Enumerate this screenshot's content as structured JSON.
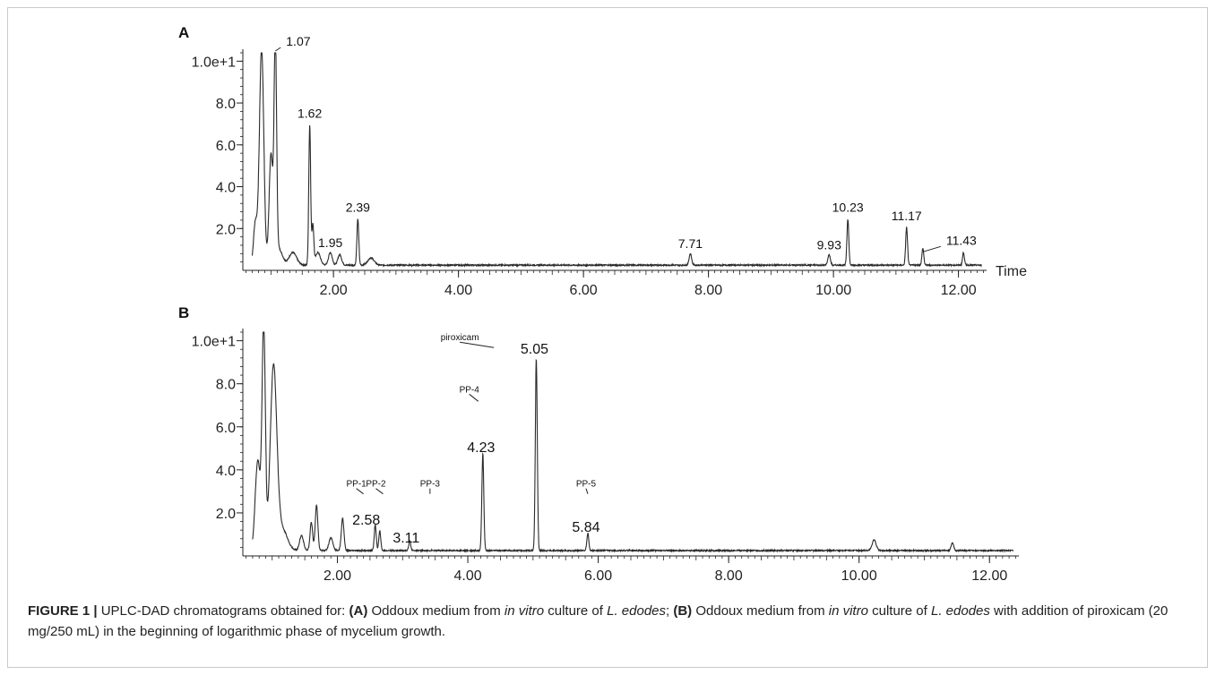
{
  "caption": {
    "label": "FIGURE 1 |",
    "parts": [
      {
        "t": " UPLC-DAD chromatograms obtained for: ",
        "s": "n"
      },
      {
        "t": "(A)",
        "s": "b"
      },
      {
        "t": " Oddoux medium from ",
        "s": "n"
      },
      {
        "t": "in vitro",
        "s": "i"
      },
      {
        "t": " culture of ",
        "s": "n"
      },
      {
        "t": "L. edodes",
        "s": "i"
      },
      {
        "t": "; ",
        "s": "n"
      },
      {
        "t": "(B)",
        "s": "b"
      },
      {
        "t": " Oddoux medium from ",
        "s": "n"
      },
      {
        "t": "in vitro",
        "s": "i"
      },
      {
        "t": " culture of ",
        "s": "n"
      },
      {
        "t": "L. edodes",
        "s": "i"
      },
      {
        "t": " with addition of piroxicam (20 mg/250 mL) in the beginning of logarithmic phase of mycelium growth.",
        "s": "n"
      }
    ]
  },
  "chart_data": [
    {
      "type": "line",
      "panel_label": "A",
      "xlabel": "Time",
      "ylabel": "",
      "xlim": [
        0.55,
        12.45
      ],
      "ylim": [
        0,
        10.4
      ],
      "x_ticks": [
        2.0,
        4.0,
        6.0,
        8.0,
        10.0,
        12.0
      ],
      "x_tick_labels": [
        "2.00",
        "4.00",
        "6.00",
        "8.00",
        "10.00",
        "12.00"
      ],
      "y_ticks": [
        2.0,
        4.0,
        6.0,
        8.0,
        10.0
      ],
      "y_tick_labels": [
        "2.0",
        "4.0",
        "6.0",
        "8.0",
        "1.0e+1"
      ],
      "baseline": 0.25,
      "series": [
        {
          "peaks": [
            {
              "x": 0.75,
              "y": 2.0,
              "w": 0.03
            },
            {
              "x": 0.85,
              "y": 10.4,
              "w": 0.035
            },
            {
              "x": 1.0,
              "y": 5.2,
              "w": 0.03
            },
            {
              "x": 1.07,
              "y": 10.4,
              "w": 0.02
            },
            {
              "x": 1.12,
              "y": 0.8,
              "w": 0.06
            },
            {
              "x": 1.35,
              "y": 0.6,
              "w": 0.06
            },
            {
              "x": 1.62,
              "y": 6.7,
              "w": 0.015
            },
            {
              "x": 1.67,
              "y": 1.9,
              "w": 0.015
            },
            {
              "x": 1.75,
              "y": 0.6,
              "w": 0.04
            },
            {
              "x": 1.95,
              "y": 0.6,
              "w": 0.03
            },
            {
              "x": 2.1,
              "y": 0.5,
              "w": 0.03
            },
            {
              "x": 2.39,
              "y": 2.2,
              "w": 0.015
            },
            {
              "x": 2.6,
              "y": 0.35,
              "w": 0.05
            },
            {
              "x": 7.71,
              "y": 0.55,
              "w": 0.02
            },
            {
              "x": 9.93,
              "y": 0.5,
              "w": 0.02
            },
            {
              "x": 10.23,
              "y": 2.2,
              "w": 0.015
            },
            {
              "x": 11.17,
              "y": 1.8,
              "w": 0.015
            },
            {
              "x": 11.43,
              "y": 0.8,
              "w": 0.015
            },
            {
              "x": 12.08,
              "y": 0.6,
              "w": 0.015
            }
          ]
        }
      ],
      "annotations": [
        {
          "text": "1.07",
          "x": 1.07,
          "y": 10.4,
          "dx": 12,
          "dy": -8,
          "line": true,
          "size": 14
        },
        {
          "text": "1.62",
          "x": 1.62,
          "y": 6.7,
          "dx": 0,
          "dy": -14,
          "line": false,
          "size": 14
        },
        {
          "text": "1.95",
          "x": 1.95,
          "y": 0.6,
          "dx": 0,
          "dy": -12,
          "line": false,
          "size": 14
        },
        {
          "text": "2.39",
          "x": 2.39,
          "y": 2.2,
          "dx": 0,
          "dy": -14,
          "line": false,
          "size": 14
        },
        {
          "text": "7.71",
          "x": 7.71,
          "y": 0.55,
          "dx": 0,
          "dy": -12,
          "line": false,
          "size": 14
        },
        {
          "text": "9.93",
          "x": 9.93,
          "y": 0.5,
          "dx": 0,
          "dy": -12,
          "line": false,
          "size": 14
        },
        {
          "text": "10.23",
          "x": 10.23,
          "y": 2.2,
          "dx": 0,
          "dy": -14,
          "line": false,
          "size": 14
        },
        {
          "text": "11.17",
          "x": 11.17,
          "y": 1.8,
          "dx": 0,
          "dy": -14,
          "line": false,
          "size": 14
        },
        {
          "text": "11.43",
          "x": 11.43,
          "y": 0.8,
          "dx": 26,
          "dy": -10,
          "line": true,
          "size": 14
        }
      ]
    },
    {
      "type": "line",
      "panel_label": "B",
      "xlabel": "",
      "ylabel": "",
      "xlim": [
        0.55,
        12.45
      ],
      "ylim": [
        0,
        10.4
      ],
      "x_ticks": [
        2.0,
        4.0,
        6.0,
        8.0,
        10.0,
        12.0
      ],
      "x_tick_labels": [
        "2.00",
        "4.00",
        "6.00",
        "8.00",
        "10.00",
        "12.00"
      ],
      "y_ticks": [
        2.0,
        4.0,
        6.0,
        8.0,
        10.0
      ],
      "y_tick_labels": [
        "2.0",
        "4.0",
        "6.0",
        "8.0",
        "1.0e+1"
      ],
      "baseline": 0.25,
      "series": [
        {
          "peaks": [
            {
              "x": 0.78,
              "y": 4.2,
              "w": 0.04
            },
            {
              "x": 0.87,
              "y": 10.4,
              "w": 0.025
            },
            {
              "x": 1.02,
              "y": 8.4,
              "w": 0.05
            },
            {
              "x": 1.15,
              "y": 1.0,
              "w": 0.08
            },
            {
              "x": 1.45,
              "y": 0.7,
              "w": 0.03
            },
            {
              "x": 1.6,
              "y": 1.3,
              "w": 0.02
            },
            {
              "x": 1.68,
              "y": 2.1,
              "w": 0.02
            },
            {
              "x": 1.9,
              "y": 0.6,
              "w": 0.03
            },
            {
              "x": 2.08,
              "y": 1.5,
              "w": 0.02
            },
            {
              "x": 2.58,
              "y": 1.2,
              "w": 0.015
            },
            {
              "x": 2.65,
              "y": 0.9,
              "w": 0.015
            },
            {
              "x": 3.11,
              "y": 0.45,
              "w": 0.015
            },
            {
              "x": 4.23,
              "y": 4.5,
              "w": 0.015
            },
            {
              "x": 5.05,
              "y": 8.9,
              "w": 0.015
            },
            {
              "x": 5.84,
              "y": 0.8,
              "w": 0.015
            },
            {
              "x": 10.23,
              "y": 0.5,
              "w": 0.03
            },
            {
              "x": 11.43,
              "y": 0.35,
              "w": 0.02
            }
          ]
        }
      ],
      "annotations": [
        {
          "text": "2.58",
          "x": 2.58,
          "y": 1.2,
          "dx": -10,
          "dy": -6,
          "line": false,
          "size": 16
        },
        {
          "text": "3.11",
          "x": 3.11,
          "y": 0.45,
          "dx": -4,
          "dy": -4,
          "line": false,
          "size": 16
        },
        {
          "text": "4.23",
          "x": 4.23,
          "y": 4.5,
          "dx": -2,
          "dy": -8,
          "line": false,
          "size": 16
        },
        {
          "text": "5.05",
          "x": 5.05,
          "y": 8.9,
          "dx": -2,
          "dy": -12,
          "line": false,
          "size": 16
        },
        {
          "text": "5.84",
          "x": 5.84,
          "y": 0.8,
          "dx": -2,
          "dy": -8,
          "line": false,
          "size": 16
        },
        {
          "text": "PP-1",
          "x": 2.4,
          "y": 2.8,
          "dx": -8,
          "dy": -10,
          "line": true,
          "size": 10
        },
        {
          "text": "PP-2",
          "x": 2.7,
          "y": 2.8,
          "dx": -8,
          "dy": -10,
          "line": true,
          "size": 10
        },
        {
          "text": "PP-3",
          "x": 3.42,
          "y": 2.8,
          "dx": 0,
          "dy": -10,
          "line": true,
          "size": 10
        },
        {
          "text": "PP-4",
          "x": 4.16,
          "y": 7.1,
          "dx": -10,
          "dy": -12,
          "line": true,
          "size": 10
        },
        {
          "text": "piroxicam",
          "x": 4.4,
          "y": 9.6,
          "dx": -38,
          "dy": -10,
          "line": true,
          "size": 10
        },
        {
          "text": "PP-5",
          "x": 5.84,
          "y": 2.8,
          "dx": -2,
          "dy": -10,
          "line": true,
          "size": 10
        }
      ]
    }
  ]
}
